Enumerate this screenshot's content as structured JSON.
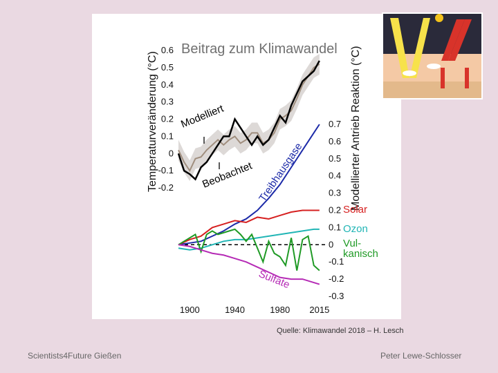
{
  "slide": {
    "source": "Quelle: Klimawandel 2018 – H. Lesch",
    "footer_left": "Scientists4Future Gießen",
    "footer_right": "Peter Lewe-Schlosser",
    "background": "#ead9e2"
  },
  "chart_data": {
    "type": "line",
    "title": "Beitrag zum Klimawandel",
    "xlabel": "",
    "x_ticks": [
      "1900",
      "1940",
      "1980",
      "2015"
    ],
    "xlim": [
      1890,
      2020
    ],
    "top_panel": {
      "ylabel": "Temperaturveränderung (°C)",
      "ylim": [
        -0.3,
        0.65
      ],
      "y_ticks": [
        "-0.2",
        "-0.1",
        "0",
        "0.1",
        "0.2",
        "0.3",
        "0.4",
        "0.5",
        "0.6"
      ],
      "series": [
        {
          "name": "Modelliert",
          "color": "#a08e7e",
          "x": [
            1890,
            1895,
            1900,
            1905,
            1910,
            1915,
            1920,
            1925,
            1930,
            1935,
            1940,
            1945,
            1950,
            1955,
            1960,
            1965,
            1970,
            1975,
            1980,
            1985,
            1990,
            1995,
            2000,
            2005,
            2010,
            2015
          ],
          "y": [
            0.02,
            -0.05,
            -0.1,
            -0.03,
            -0.02,
            0.02,
            0.05,
            0.08,
            0.05,
            0.08,
            0.1,
            0.06,
            0.08,
            0.12,
            0.12,
            0.06,
            0.08,
            0.12,
            0.2,
            0.22,
            0.25,
            0.32,
            0.4,
            0.45,
            0.5,
            0.52
          ]
        },
        {
          "name": "Beobachtet",
          "color": "#000000",
          "x": [
            1890,
            1895,
            1900,
            1905,
            1910,
            1915,
            1920,
            1925,
            1930,
            1935,
            1940,
            1945,
            1950,
            1955,
            1960,
            1965,
            1970,
            1975,
            1980,
            1985,
            1990,
            1995,
            2000,
            2005,
            2010,
            2015
          ],
          "y": [
            0.0,
            -0.1,
            -0.12,
            -0.15,
            -0.08,
            -0.05,
            0.0,
            0.05,
            0.1,
            0.1,
            0.2,
            0.15,
            0.1,
            0.05,
            0.1,
            0.05,
            0.08,
            0.15,
            0.22,
            0.18,
            0.28,
            0.35,
            0.42,
            0.45,
            0.48,
            0.54
          ]
        }
      ]
    },
    "bottom_panel": {
      "ylabel": "Modellierter Antrieb Reaktion (°C)",
      "ylim": [
        -0.3,
        0.72
      ],
      "y_ticks": [
        "-0.3",
        "-0.2",
        "-0.1",
        "0",
        "0.1",
        "0.2",
        "0.3",
        "0.4",
        "0.5",
        "0.6",
        "0.7"
      ],
      "series": [
        {
          "name": "Treibhausgase",
          "color": "#1c2aa8",
          "x": [
            1890,
            1900,
            1910,
            1920,
            1930,
            1940,
            1950,
            1960,
            1970,
            1980,
            1990,
            2000,
            2010,
            2015
          ],
          "y": [
            0.0,
            0.01,
            0.02,
            0.05,
            0.08,
            0.12,
            0.15,
            0.2,
            0.27,
            0.35,
            0.45,
            0.55,
            0.65,
            0.7
          ]
        },
        {
          "name": "Solar",
          "color": "#d62020",
          "x": [
            1890,
            1900,
            1910,
            1920,
            1930,
            1940,
            1950,
            1960,
            1970,
            1980,
            1990,
            2000,
            2010,
            2015
          ],
          "y": [
            0.0,
            0.03,
            0.05,
            0.1,
            0.12,
            0.14,
            0.13,
            0.16,
            0.15,
            0.17,
            0.19,
            0.2,
            0.2,
            0.2
          ]
        },
        {
          "name": "Ozon",
          "color": "#20b5b5",
          "x": [
            1890,
            1900,
            1910,
            1920,
            1930,
            1940,
            1950,
            1960,
            1970,
            1980,
            1990,
            2000,
            2010,
            2015
          ],
          "y": [
            -0.02,
            -0.03,
            -0.02,
            0.0,
            0.02,
            0.03,
            0.03,
            0.04,
            0.05,
            0.06,
            0.07,
            0.08,
            0.09,
            0.09
          ]
        },
        {
          "name": "Vulkanisch",
          "color": "#1f9a25",
          "x": [
            1890,
            1895,
            1900,
            1905,
            1910,
            1915,
            1920,
            1925,
            1930,
            1935,
            1940,
            1945,
            1950,
            1955,
            1960,
            1965,
            1970,
            1975,
            1980,
            1985,
            1990,
            1995,
            2000,
            2005,
            2010,
            2015
          ],
          "y": [
            0.0,
            0.02,
            0.04,
            0.06,
            -0.04,
            0.06,
            0.08,
            0.06,
            0.07,
            0.08,
            0.09,
            0.06,
            0.02,
            0.06,
            -0.02,
            -0.1,
            0.02,
            -0.05,
            -0.07,
            -0.12,
            0.04,
            -0.15,
            0.03,
            0.05,
            -0.12,
            -0.15
          ]
        },
        {
          "name": "Sulfate",
          "color": "#b52ab5",
          "x": [
            1890,
            1900,
            1910,
            1920,
            1930,
            1940,
            1950,
            1960,
            1970,
            1980,
            1990,
            2000,
            2010,
            2015
          ],
          "y": [
            0.0,
            -0.01,
            -0.03,
            -0.05,
            -0.06,
            -0.08,
            -0.1,
            -0.13,
            -0.16,
            -0.19,
            -0.2,
            -0.2,
            -0.22,
            -0.23
          ]
        }
      ],
      "zero_line": {
        "style": "dashed",
        "color": "#000000"
      }
    },
    "annotations": {
      "modelled": "Modelliert",
      "observed": "Beobachtet",
      "vulkanisch_line1": "Vul-",
      "vulkanisch_line2": "kanisch"
    },
    "grid": false
  },
  "inset": {
    "description_icon": "energy-balance-diagram-icon"
  }
}
